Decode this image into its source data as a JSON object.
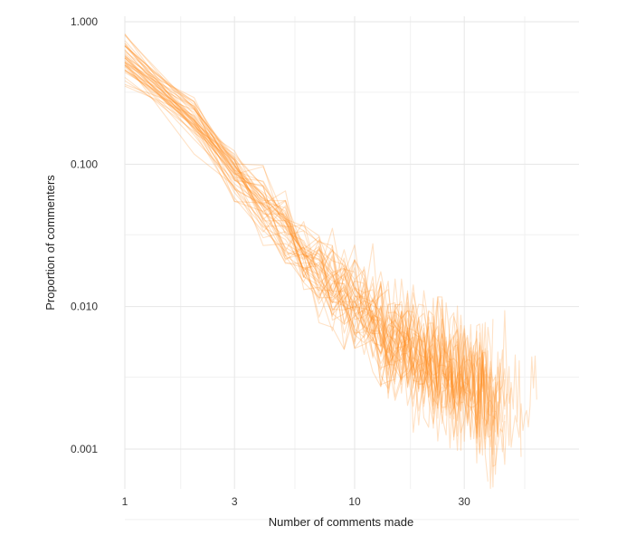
{
  "chart_data": {
    "type": "line",
    "title": "",
    "xlabel": "Number of comments made",
    "ylabel": "Proportion of commenters",
    "x_scale": "log",
    "y_scale": "log",
    "xlim": [
      0.8,
      80
    ],
    "ylim": [
      0.0005,
      1.25
    ],
    "x_ticks": [
      1,
      3,
      10,
      30
    ],
    "x_tick_labels": [
      "1",
      "3",
      "10",
      "30"
    ],
    "y_ticks": [
      0.001,
      0.01,
      0.1,
      1
    ],
    "y_tick_labels": [
      "0.001",
      "0.010",
      "0.100",
      "1.000"
    ],
    "grid": true,
    "legend": "none",
    "series_color": "#ff8c1a",
    "series_opacity": 0.25,
    "series_count": 45,
    "trend": {
      "description": "approximate central tendency of the overlaid series",
      "x": [
        1,
        2,
        3,
        5,
        10,
        20,
        40,
        60
      ],
      "y": [
        0.55,
        0.2,
        0.085,
        0.032,
        0.01,
        0.004,
        0.0022,
        0.0017
      ]
    }
  }
}
